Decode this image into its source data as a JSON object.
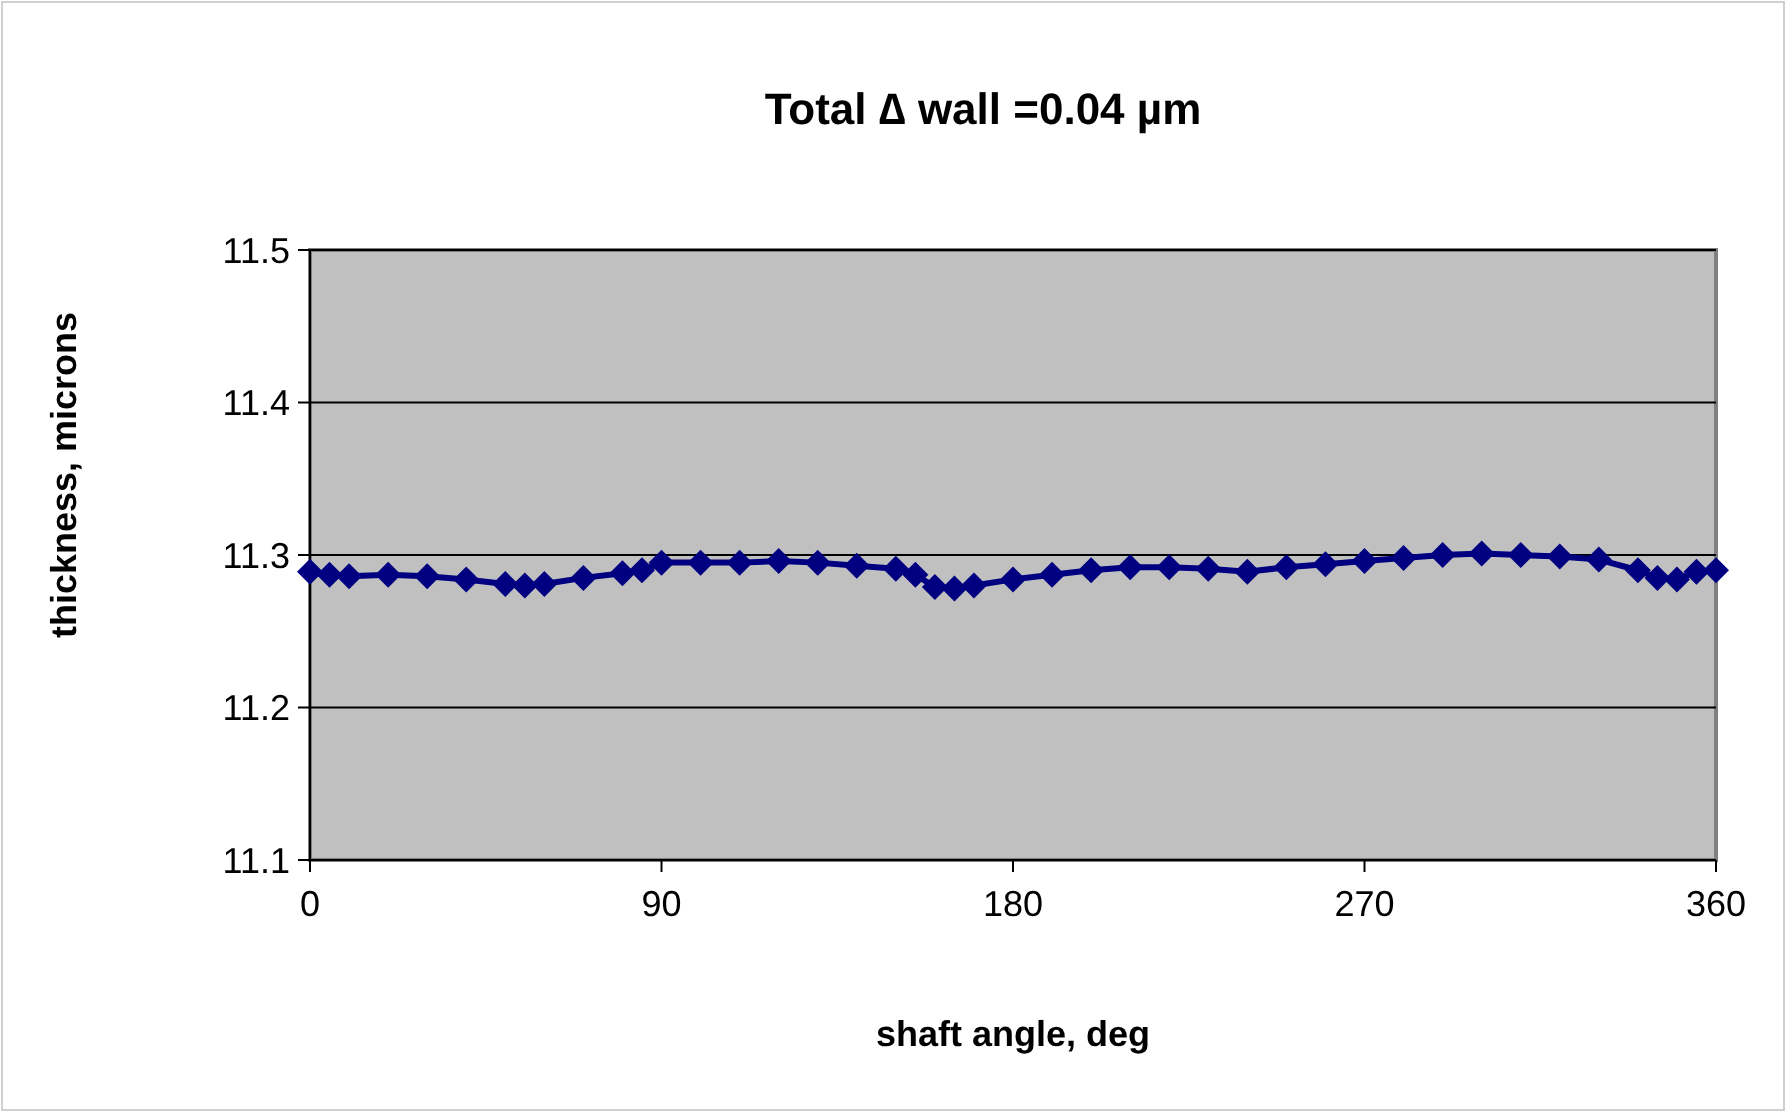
{
  "chart_data": {
    "type": "line",
    "title": "Total ∆ wall =0.04 µm",
    "xlabel": "shaft angle, deg",
    "ylabel": "thickness, microns",
    "x": [
      0,
      5,
      10,
      20,
      30,
      40,
      50,
      55,
      60,
      70,
      80,
      85,
      90,
      100,
      110,
      120,
      130,
      140,
      150,
      155,
      160,
      165,
      170,
      180,
      190,
      200,
      210,
      220,
      230,
      240,
      250,
      260,
      270,
      280,
      290,
      300,
      310,
      320,
      330,
      340,
      345,
      350,
      355,
      360
    ],
    "series": [
      {
        "color": "#000080",
        "values": [
          11.289,
          11.287,
          11.286,
          11.287,
          11.286,
          11.284,
          11.281,
          11.28,
          11.281,
          11.285,
          11.288,
          11.29,
          11.295,
          11.295,
          11.295,
          11.296,
          11.295,
          11.293,
          11.291,
          11.287,
          11.279,
          11.278,
          11.28,
          11.284,
          11.287,
          11.29,
          11.292,
          11.292,
          11.291,
          11.289,
          11.292,
          11.294,
          11.296,
          11.298,
          11.3,
          11.301,
          11.3,
          11.299,
          11.297,
          11.29,
          11.285,
          11.284,
          11.289,
          11.29
        ]
      }
    ],
    "xlim": [
      0,
      360
    ],
    "xticks": [
      0,
      90,
      180,
      270,
      360
    ],
    "ylim": [
      11.1,
      11.5
    ],
    "yticks": [
      {
        "value": 11.1,
        "label": "11.1"
      },
      {
        "value": 11.2,
        "label": "11.2"
      },
      {
        "value": 11.3,
        "label": "11.3"
      },
      {
        "value": 11.4,
        "label": "11.4"
      },
      {
        "value": 11.5,
        "label": "11.5"
      }
    ],
    "grid": "y",
    "marker": "diamond",
    "line_style": "solid"
  }
}
